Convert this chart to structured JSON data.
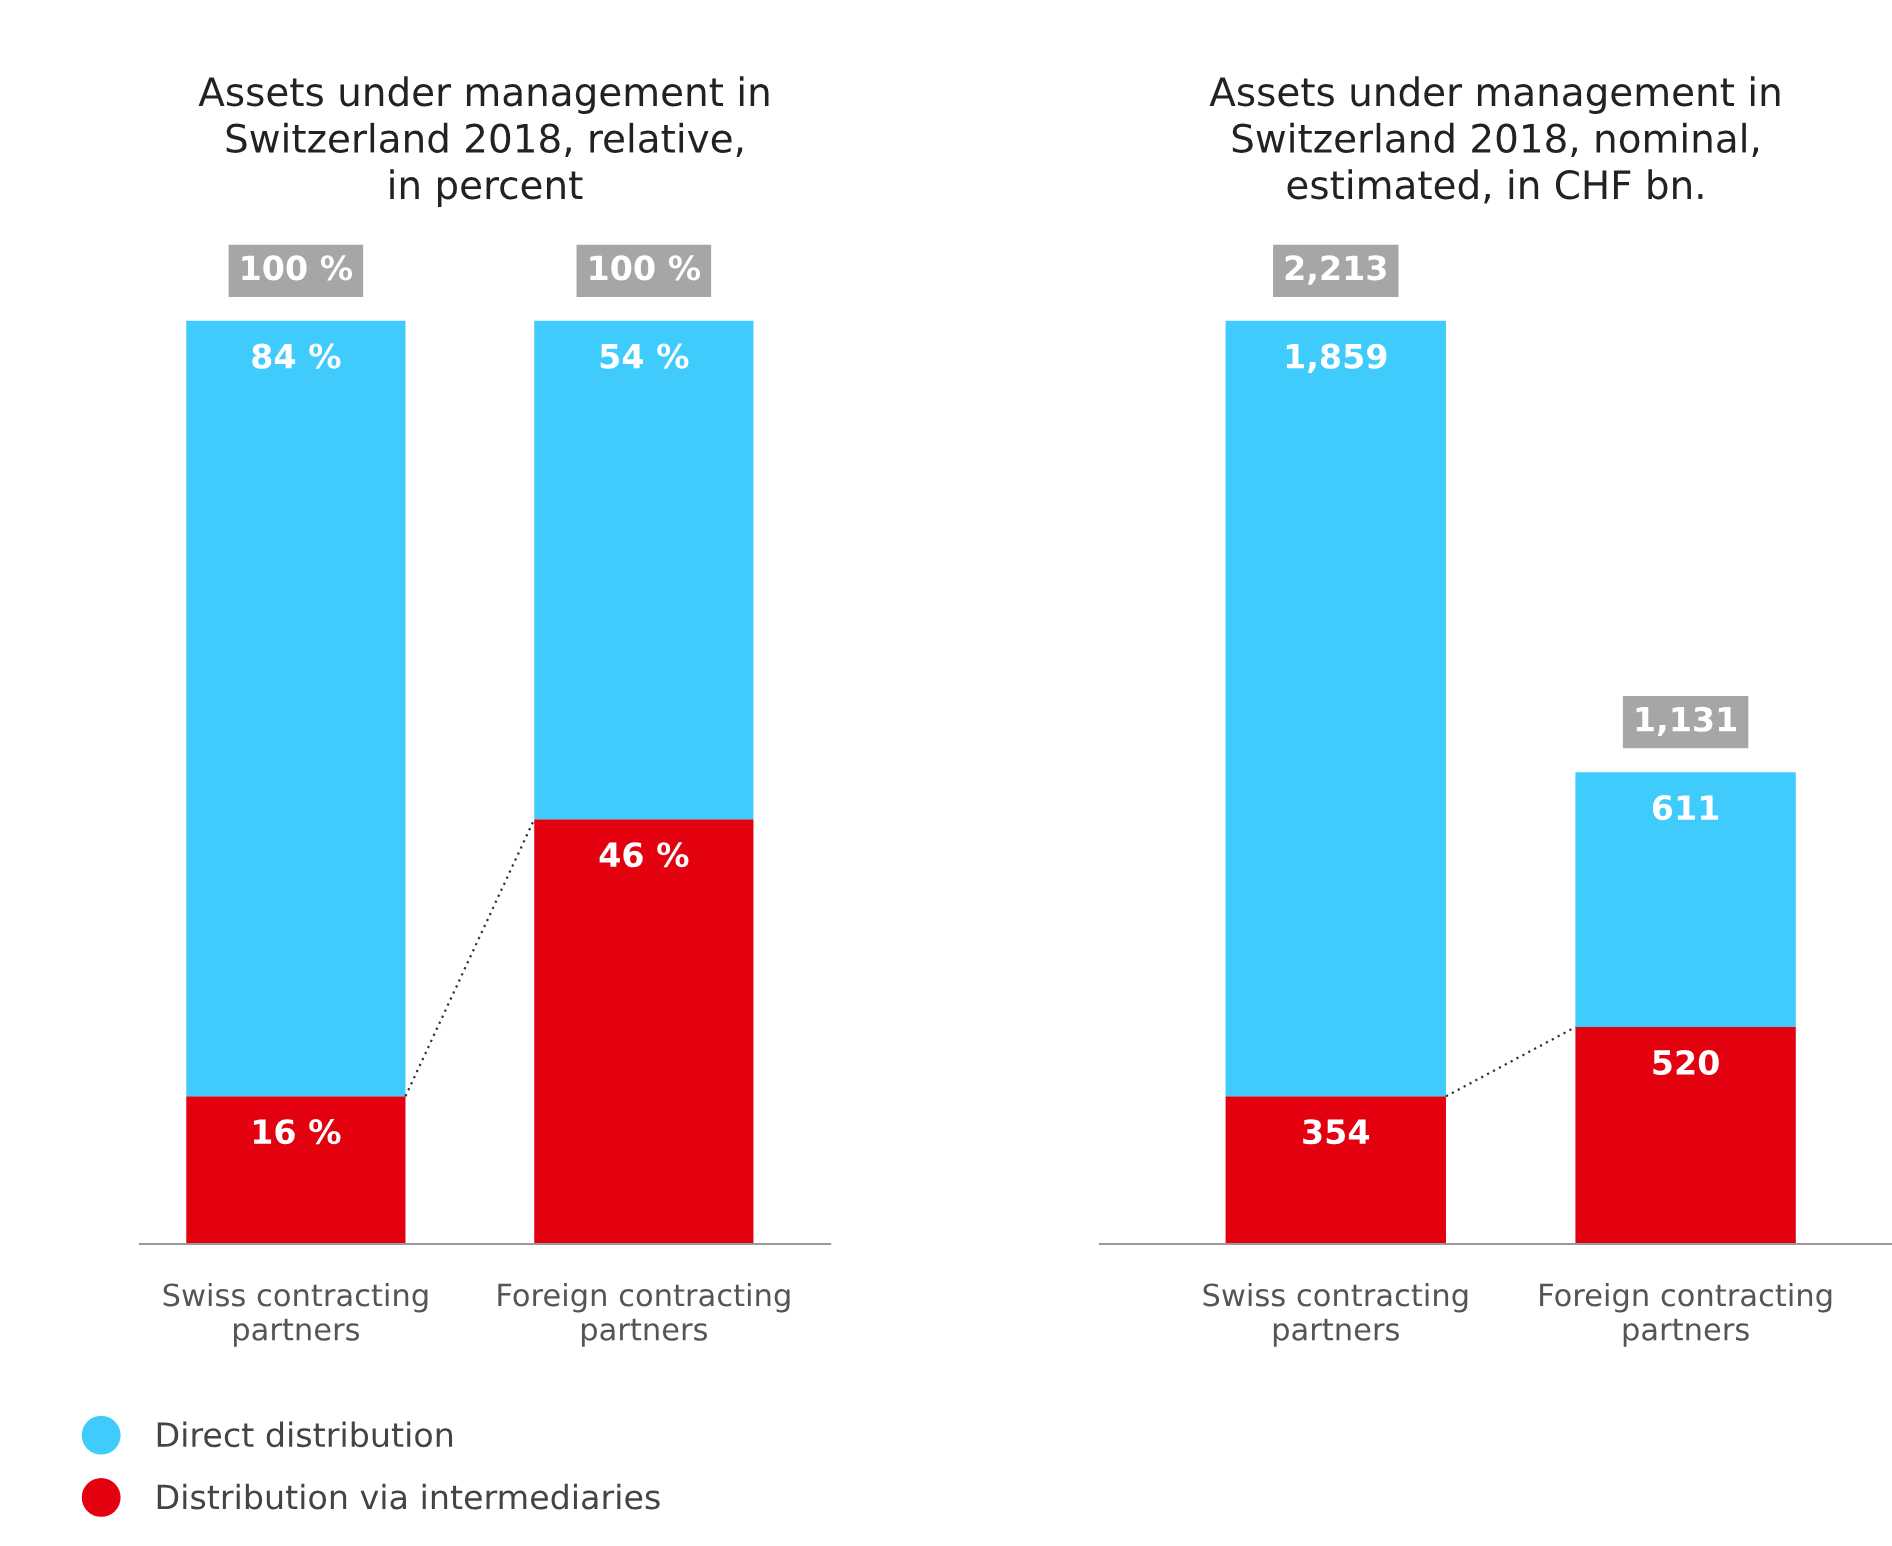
{
  "chart_data": [
    {
      "type": "bar",
      "stacked": true,
      "title": "Assets under management in\nSwitzerland 2018, relative,\nin percent",
      "categories": [
        "Swiss contracting\npartners",
        "Foreign contracting\npartners"
      ],
      "legend": "bottom left",
      "tick_labels": "x",
      "series": [
        {
          "name": "Distribution via intermediaries",
          "color": "#e3000f",
          "values": [
            16,
            46
          ],
          "value_labels": [
            "16 %",
            "46 %"
          ]
        },
        {
          "name": "Direct distribution",
          "color": "#40cbfd",
          "values": [
            84,
            54
          ],
          "value_labels": [
            "84 %",
            "54 %"
          ]
        }
      ],
      "totals": [
        "100 %",
        "100 %"
      ]
    },
    {
      "type": "bar",
      "stacked": true,
      "title": "Assets under management in\nSwitzerland 2018, nominal,\nestimated, in CHF bn.",
      "categories": [
        "Swiss contracting\npartners",
        "Foreign contracting\npartners"
      ],
      "tick_labels": "x",
      "series": [
        {
          "color": "#e3000f",
          "values": [
            354,
            520
          ],
          "value_labels": [
            "354",
            "520"
          ]
        },
        {
          "color": "#40cbfd",
          "values": [
            1859,
            611
          ],
          "value_labels": [
            "1,859",
            "611"
          ]
        }
      ],
      "totals": [
        "2,213",
        "1,131"
      ]
    }
  ]
}
